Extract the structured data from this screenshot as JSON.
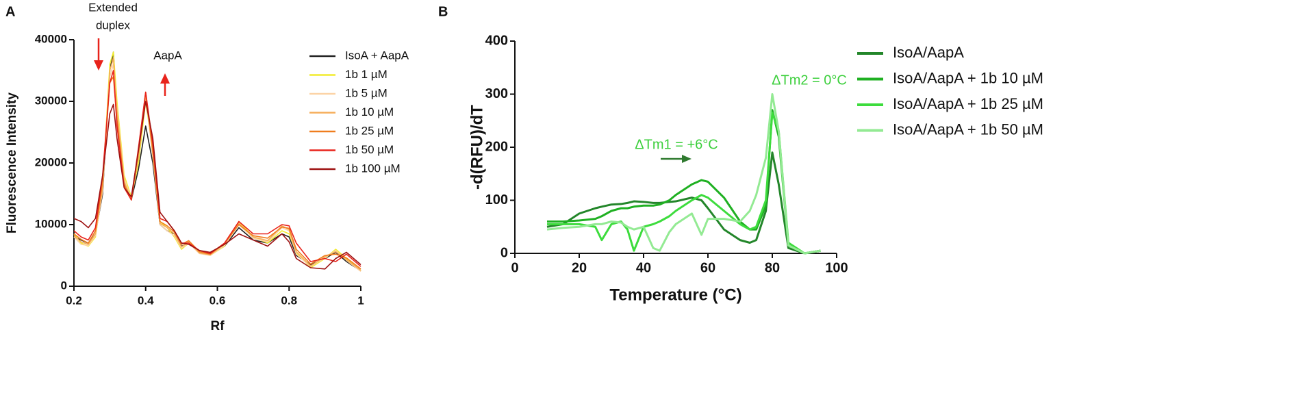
{
  "chart_data": [
    {
      "type": "line",
      "panel_label": "A",
      "x_label": "Rf",
      "y_label": "Fluorescence Intensity",
      "annotations": [
        "Extended",
        "duplex",
        "AapA"
      ],
      "xlim": [
        0.2,
        1.0
      ],
      "xticks": [
        0.2,
        0.4,
        0.6,
        0.8,
        1.0
      ],
      "ylim": [
        0,
        40000
      ],
      "yticks": [
        0,
        10000,
        20000,
        30000,
        40000
      ],
      "x": [
        0.2,
        0.22,
        0.24,
        0.26,
        0.28,
        0.3,
        0.31,
        0.32,
        0.34,
        0.36,
        0.38,
        0.4,
        0.42,
        0.44,
        0.46,
        0.48,
        0.5,
        0.52,
        0.55,
        0.58,
        0.62,
        0.66,
        0.7,
        0.74,
        0.78,
        0.8,
        0.82,
        0.86,
        0.9,
        0.93,
        0.96,
        1.0
      ],
      "series": [
        {
          "name": "IsoA + AapA",
          "color": "#222222",
          "values": [
            8000,
            7500,
            7000,
            8500,
            15000,
            35000,
            38000,
            28000,
            17000,
            14000,
            19000,
            26000,
            20000,
            10000,
            9000,
            8500,
            6500,
            7000,
            5500,
            5200,
            6500,
            9500,
            7500,
            7000,
            8500,
            8000,
            5000,
            3500,
            4500,
            5500,
            4000,
            2500
          ]
        },
        {
          "name": "1b 1 µM",
          "color": "#f2ec2e",
          "values": [
            8500,
            7000,
            6500,
            8000,
            16000,
            36000,
            38000,
            30000,
            18000,
            14500,
            20000,
            30000,
            22000,
            10500,
            9500,
            8000,
            6000,
            7000,
            5500,
            5000,
            6500,
            10500,
            8000,
            7000,
            9000,
            8500,
            5500,
            3000,
            4500,
            6000,
            4500,
            2500
          ]
        },
        {
          "name": "1b 5 µM",
          "color": "#fcd3a6",
          "values": [
            8000,
            6800,
            6600,
            8200,
            15500,
            34000,
            36000,
            29000,
            17500,
            14200,
            21000,
            31000,
            21000,
            10000,
            9000,
            8200,
            6200,
            7000,
            5300,
            5000,
            6600,
            10000,
            7800,
            7200,
            9500,
            9000,
            5200,
            3200,
            4600,
            5800,
            4200,
            2400
          ]
        },
        {
          "name": "1b 10 µM",
          "color": "#f5ad5a",
          "values": [
            8200,
            7200,
            6800,
            8500,
            16000,
            35000,
            37000,
            28500,
            17000,
            14000,
            21000,
            31000,
            21500,
            10200,
            9500,
            8500,
            6400,
            7200,
            5400,
            5100,
            6800,
            10200,
            8000,
            7400,
            9800,
            9200,
            5600,
            3300,
            4800,
            5600,
            4300,
            2600
          ]
        },
        {
          "name": "1b 25 µM",
          "color": "#ef7d1e",
          "values": [
            8500,
            7600,
            7000,
            9000,
            17000,
            33000,
            34000,
            27000,
            16500,
            14000,
            22000,
            31500,
            22000,
            10500,
            9800,
            8800,
            6800,
            7400,
            5600,
            5200,
            7000,
            10000,
            8200,
            7800,
            9600,
            9400,
            6000,
            3600,
            5000,
            5200,
            4600,
            2800
          ]
        },
        {
          "name": "1b 50 µM",
          "color": "#e8231b",
          "values": [
            9000,
            8000,
            7500,
            9500,
            18000,
            33000,
            35000,
            26000,
            16000,
            14000,
            22500,
            31500,
            23000,
            11000,
            10500,
            9000,
            7000,
            7000,
            5800,
            5300,
            7000,
            10500,
            8500,
            8500,
            10000,
            9800,
            7000,
            4000,
            4500,
            4000,
            5200,
            3200
          ]
        },
        {
          "name": "1b 100 µM",
          "color": "#9e1212",
          "values": [
            11000,
            10500,
            9500,
            11000,
            18000,
            28000,
            29500,
            24000,
            16000,
            14500,
            22000,
            30000,
            24000,
            12000,
            10500,
            9000,
            7000,
            6800,
            5800,
            5500,
            6800,
            8500,
            7500,
            6500,
            8500,
            7200,
            4500,
            3000,
            2800,
            4500,
            5500,
            3500
          ]
        }
      ]
    },
    {
      "type": "line",
      "panel_label": "B",
      "x_label": "Temperature (°C)",
      "y_label": "-d(RFU)/dT",
      "annotations": [
        "ΔTm2 = 0°C",
        "ΔTm1 = +6°C"
      ],
      "xlim": [
        0,
        100
      ],
      "xticks": [
        0,
        20,
        40,
        60,
        80,
        100
      ],
      "ylim": [
        0,
        400
      ],
      "yticks": [
        0,
        100,
        200,
        300,
        400
      ],
      "x": [
        10,
        15,
        20,
        25,
        27,
        30,
        33,
        35,
        37,
        40,
        43,
        45,
        48,
        50,
        55,
        58,
        60,
        65,
        70,
        73,
        75,
        78,
        80,
        82,
        85,
        90,
        95
      ],
      "series": [
        {
          "name": "IsoA/AapA",
          "color": "#23862a",
          "values": [
            50,
            55,
            75,
            85,
            88,
            92,
            93,
            95,
            98,
            97,
            95,
            95,
            97,
            98,
            105,
            100,
            85,
            45,
            25,
            20,
            25,
            80,
            190,
            130,
            10,
            0,
            5
          ]
        },
        {
          "name": "IsoA/AapA + 1b 10 µM",
          "color": "#1fb022",
          "values": [
            60,
            60,
            62,
            65,
            70,
            80,
            85,
            85,
            88,
            90,
            90,
            92,
            100,
            110,
            130,
            138,
            135,
            105,
            60,
            45,
            45,
            90,
            270,
            220,
            15,
            0,
            5
          ]
        },
        {
          "name": "IsoA/AapA + 1b 25 µM",
          "color": "#3ddc3d",
          "values": [
            55,
            55,
            55,
            50,
            25,
            55,
            60,
            45,
            5,
            50,
            55,
            60,
            70,
            80,
            100,
            110,
            105,
            80,
            55,
            45,
            50,
            100,
            265,
            230,
            20,
            0,
            5
          ]
        },
        {
          "name": "IsoA/AapA + 1b 50 µM",
          "color": "#93ea93",
          "values": [
            45,
            48,
            50,
            55,
            55,
            60,
            58,
            50,
            45,
            50,
            10,
            5,
            40,
            55,
            75,
            35,
            65,
            65,
            60,
            80,
            110,
            180,
            300,
            230,
            15,
            0,
            5
          ]
        }
      ]
    }
  ]
}
